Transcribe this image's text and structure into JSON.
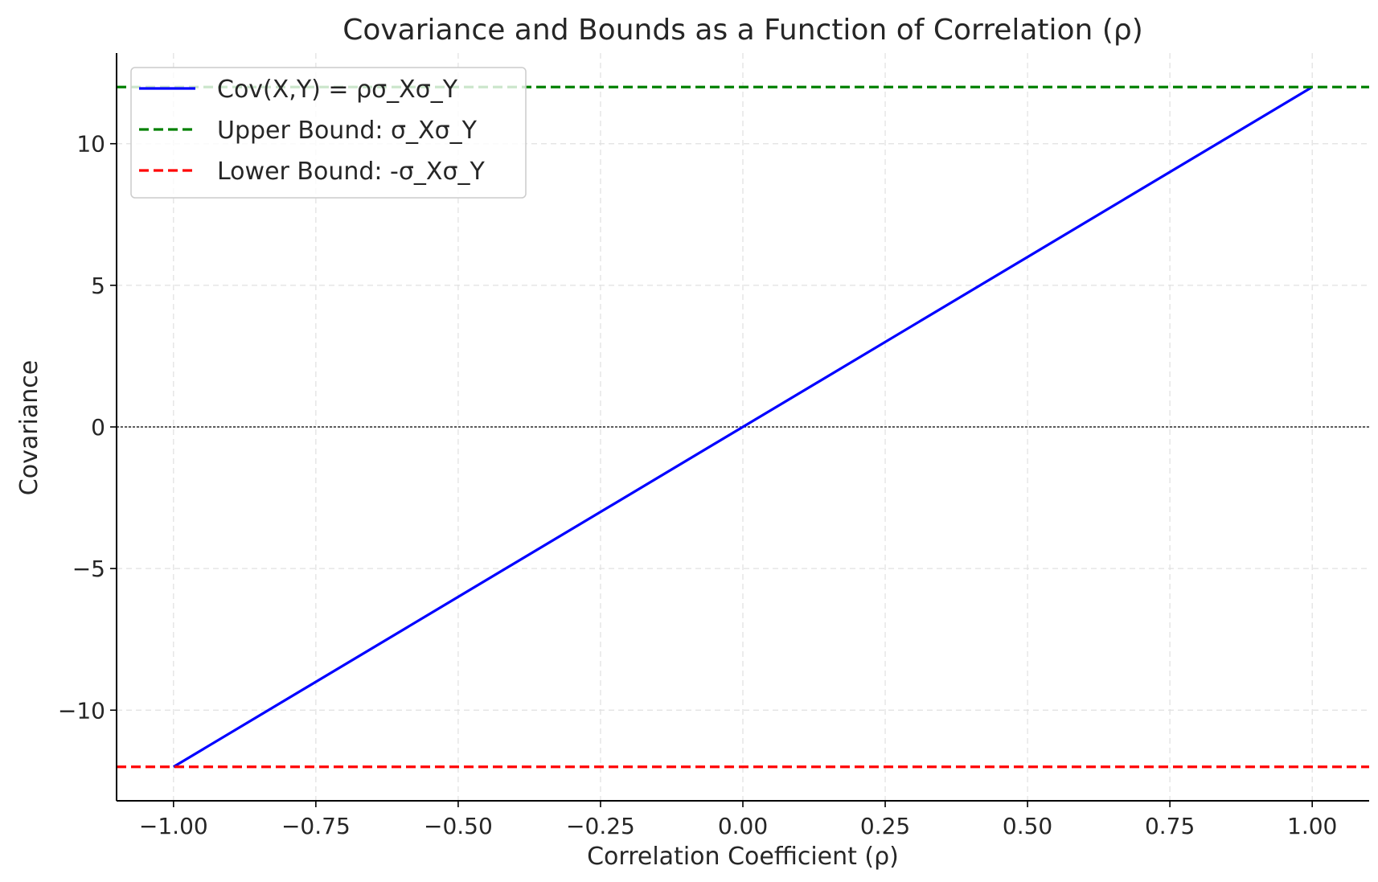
{
  "chart_data": {
    "type": "line",
    "title": "Covariance and Bounds as a Function of Correlation (ρ)",
    "xlabel": "Correlation Coefficient (ρ)",
    "ylabel": "Covariance",
    "xlim": [
      -1.1,
      1.1
    ],
    "ylim": [
      -13.2,
      13.2
    ],
    "x_ticks": [
      -1.0,
      -0.75,
      -0.5,
      -0.25,
      0.0,
      0.25,
      0.5,
      0.75,
      1.0
    ],
    "x_tick_labels": [
      "−1.00",
      "−0.75",
      "−0.50",
      "−0.25",
      "0.00",
      "0.25",
      "0.50",
      "0.75",
      "1.00"
    ],
    "y_ticks": [
      -10,
      -5,
      0,
      5,
      10
    ],
    "y_tick_labels": [
      "−10",
      "−5",
      "0",
      "5",
      "10"
    ],
    "grid": true,
    "legend_position": "upper-left",
    "series": [
      {
        "name": "Cov(X,Y) = ρσ_Xσ_Y",
        "style": "solid",
        "color": "#0000ff",
        "x": [
          -1.0,
          1.0
        ],
        "y": [
          -12,
          12
        ]
      },
      {
        "name": "Upper Bound: σ_Xσ_Y",
        "style": "dashed",
        "color": "#008000",
        "y_const": 12
      },
      {
        "name": "Lower Bound: -σ_Xσ_Y",
        "style": "dashed",
        "color": "#ff0000",
        "y_const": -12
      }
    ],
    "reference_lines": [
      {
        "y": 0,
        "style": "dashed",
        "color": "#000000"
      }
    ]
  }
}
